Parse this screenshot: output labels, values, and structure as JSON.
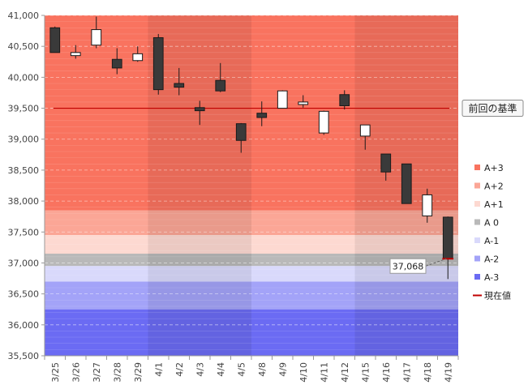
{
  "chart_data": {
    "type": "candlestick",
    "title": "",
    "xlabel": "",
    "ylabel": "",
    "ylim": [
      35500,
      41000
    ],
    "yticks": [
      35500,
      36000,
      36500,
      37000,
      37500,
      38000,
      38500,
      39000,
      39500,
      40000,
      40500,
      41000
    ],
    "ytick_labels": [
      "35,500",
      "36,000",
      "36,500",
      "37,000",
      "37,500",
      "38,000",
      "38,500",
      "39,000",
      "39,500",
      "40,000",
      "40,500",
      "41,000"
    ],
    "categories": [
      "3/25",
      "3/26",
      "3/27",
      "3/28",
      "3/29",
      "4/1",
      "4/2",
      "4/3",
      "4/4",
      "4/5",
      "4/8",
      "4/9",
      "4/10",
      "4/11",
      "4/12",
      "4/15",
      "4/16",
      "4/17",
      "4/18",
      "4/19"
    ],
    "candles": [
      {
        "open": 40800,
        "high": 40820,
        "low": 40400,
        "close": 40400
      },
      {
        "open": 40350,
        "high": 40520,
        "low": 40300,
        "close": 40400
      },
      {
        "open": 40520,
        "high": 40980,
        "low": 40470,
        "close": 40770
      },
      {
        "open": 40290,
        "high": 40470,
        "low": 40050,
        "close": 40150
      },
      {
        "open": 40270,
        "high": 40500,
        "low": 40250,
        "close": 40380
      },
      {
        "open": 40640,
        "high": 40700,
        "low": 39720,
        "close": 39800
      },
      {
        "open": 39900,
        "high": 40150,
        "low": 39710,
        "close": 39840
      },
      {
        "open": 39510,
        "high": 39620,
        "low": 39230,
        "close": 39460
      },
      {
        "open": 39950,
        "high": 40230,
        "low": 39760,
        "close": 39780
      },
      {
        "open": 39250,
        "high": 39260,
        "low": 38780,
        "close": 38980
      },
      {
        "open": 39420,
        "high": 39610,
        "low": 39210,
        "close": 39350
      },
      {
        "open": 39500,
        "high": 39790,
        "low": 39500,
        "close": 39780
      },
      {
        "open": 39560,
        "high": 39710,
        "low": 39510,
        "close": 39600
      },
      {
        "open": 39100,
        "high": 39460,
        "low": 39070,
        "close": 39450
      },
      {
        "open": 39720,
        "high": 39790,
        "low": 39480,
        "close": 39540
      },
      {
        "open": 39050,
        "high": 39230,
        "low": 38830,
        "close": 39230
      },
      {
        "open": 38760,
        "high": 38760,
        "low": 38330,
        "close": 38470
      },
      {
        "open": 38600,
        "high": 38600,
        "low": 37960,
        "close": 37960
      },
      {
        "open": 37760,
        "high": 38200,
        "low": 37650,
        "close": 38100
      },
      {
        "open": 37740,
        "high": 37750,
        "low": 36740,
        "close": 37068
      }
    ],
    "bands": [
      {
        "name": "A+3",
        "from": 37850,
        "to": 41000,
        "color": "#f9735f"
      },
      {
        "name": "A+2",
        "from": 37450,
        "to": 37850,
        "color": "#fba696"
      },
      {
        "name": "A+1",
        "from": 37150,
        "to": 37450,
        "color": "#fdd9d1"
      },
      {
        "name": "A 0",
        "from": 36950,
        "to": 37150,
        "color": "#b9b9b9"
      },
      {
        "name": "A-1",
        "from": 36700,
        "to": 36950,
        "color": "#d9d9fb"
      },
      {
        "name": "A-2",
        "from": 36250,
        "to": 36700,
        "color": "#a3a3f8"
      },
      {
        "name": "A-3",
        "from": 35500,
        "to": 36250,
        "color": "#6b6bf3"
      }
    ],
    "week_shading": [
      {
        "from_index": 5,
        "to_index": 9
      },
      {
        "from_index": 15,
        "to_index": 19
      }
    ],
    "reference_line": {
      "value": 39500,
      "label": "前回の基準",
      "color": "#c00000"
    },
    "current_value": {
      "value": 37068,
      "label": "37,068"
    },
    "legend": [
      {
        "label": "A+3",
        "color": "#f9735f",
        "kind": "box"
      },
      {
        "label": "A+2",
        "color": "#fba696",
        "kind": "box"
      },
      {
        "label": "A+1",
        "color": "#fdd9d1",
        "kind": "box"
      },
      {
        "label": "A 0",
        "color": "#b9b9b9",
        "kind": "box"
      },
      {
        "label": "A-1",
        "color": "#d9d9fb",
        "kind": "box"
      },
      {
        "label": "A-2",
        "color": "#a3a3f8",
        "kind": "box"
      },
      {
        "label": "A-3",
        "color": "#6b6bf3",
        "kind": "box"
      },
      {
        "label": "現在値",
        "color": "#c00000",
        "kind": "line"
      }
    ],
    "grid": true,
    "legend_position": "right"
  }
}
